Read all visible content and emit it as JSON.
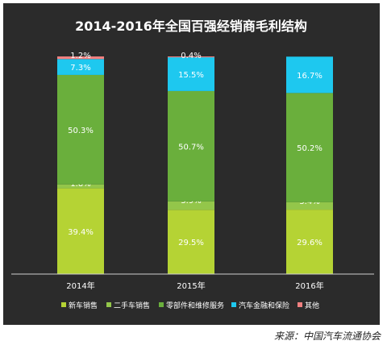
{
  "chart_data": {
    "type": "bar",
    "stacked": true,
    "title": "2014-2016年全国百强经销商毛利结构",
    "categories": [
      "2014年",
      "2015年",
      "2016年"
    ],
    "series": [
      {
        "name": "新车销售",
        "color": "#b5d334",
        "values": [
          39.4,
          29.5,
          29.6
        ],
        "labels": [
          "39.4%",
          "29.5%",
          "29.6%"
        ]
      },
      {
        "name": "二手车销售",
        "color": "#93c64a",
        "values": [
          1.8,
          3.9,
          3.4
        ],
        "labels": [
          "1.8%",
          "3.9%",
          "3.4%"
        ]
      },
      {
        "name": "零部件和维修服务",
        "color": "#6aaf3c",
        "values": [
          50.3,
          50.7,
          50.2
        ],
        "labels": [
          "50.3%",
          "50.7%",
          "50.2%"
        ]
      },
      {
        "name": "汽车金融和保险",
        "color": "#1ec8ef",
        "values": [
          7.3,
          15.5,
          16.7
        ],
        "labels": [
          "7.3%",
          "15.5%",
          "16.7%"
        ]
      },
      {
        "name": "其他",
        "color": "#f08080",
        "values": [
          1.2,
          0.4,
          0.0
        ],
        "labels": [
          "1.2%",
          "0.4%",
          ""
        ]
      }
    ],
    "ylim": [
      0,
      100
    ],
    "grid": false,
    "legend_position": "bottom",
    "source": "来源：中国汽车流通协会"
  }
}
